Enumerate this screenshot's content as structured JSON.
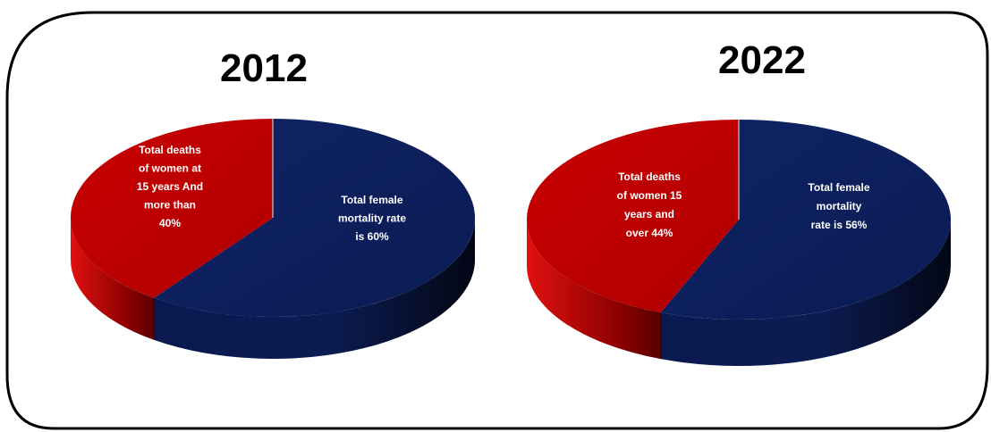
{
  "chart_data": [
    {
      "type": "pie",
      "title": "2012",
      "colors": [
        "#0d2060",
        "#c00000"
      ],
      "slices": [
        {
          "value": 60,
          "label_lines": [
            "Total female",
            "mortality rate",
            "is 60%"
          ]
        },
        {
          "value": 40,
          "label_lines": [
            "Total deaths",
            "of women at",
            "15 years And",
            "more than",
            "40%"
          ]
        }
      ]
    },
    {
      "type": "pie",
      "title": "2022",
      "colors": [
        "#0d2060",
        "#c00000"
      ],
      "slices": [
        {
          "value": 56,
          "label_lines": [
            "Total female",
            "mortality",
            "rate is 56%"
          ]
        },
        {
          "value": 44,
          "label_lines": [
            "Total deaths",
            "of women 15",
            "years and",
            "over 44%"
          ]
        }
      ]
    }
  ]
}
